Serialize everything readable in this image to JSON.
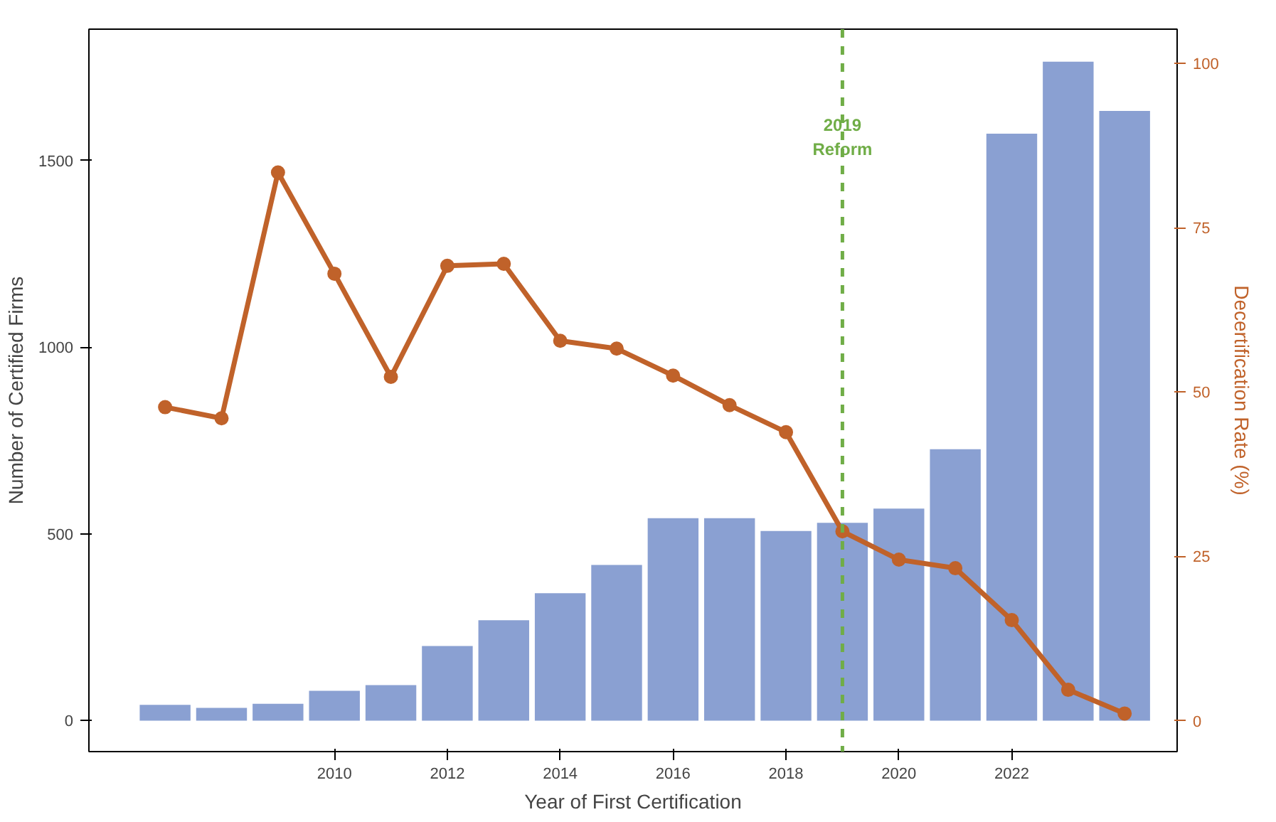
{
  "chart_data": {
    "type": "bar",
    "xlabel": "Year of First Certification",
    "ylabel": "Number of Certified Firms",
    "y2label": "Decertification Rate (%)",
    "x": [
      2007,
      2008,
      2009,
      2010,
      2011,
      2012,
      2013,
      2014,
      2015,
      2016,
      2017,
      2018,
      2019,
      2020,
      2021,
      2022,
      2023,
      2024
    ],
    "series": [
      {
        "color": "#8aa0d2",
        "values": [
          42,
          34,
          45,
          80,
          95,
          200,
          269,
          341,
          417,
          542,
          542,
          508,
          530,
          568,
          727,
          1572,
          1765,
          1633
        ]
      },
      {
        "type": "line",
        "axis": "y2",
        "color": "#c0622a",
        "marker": "circle",
        "line_style": "solid",
        "values": [
          47.7,
          46.0,
          83.4,
          68.0,
          52.3,
          69.2,
          69.5,
          57.8,
          56.6,
          52.5,
          48.0,
          43.9,
          28.8,
          24.5,
          23.2,
          15.3,
          4.7,
          1.1
        ]
      }
    ],
    "xlim": [
      2005.65,
      2024.93
    ],
    "xticks": [
      2010,
      2012,
      2014,
      2016,
      2018,
      2020,
      2022
    ],
    "ylim": [
      -83,
      1852
    ],
    "yticks": [
      0,
      500,
      1000,
      1500
    ],
    "y2lim": [
      -4.7,
      105.2
    ],
    "y2ticks": [
      0,
      25,
      50,
      75,
      100
    ],
    "ref_lines": [
      {
        "axis": "x",
        "value": 2019,
        "label": "2019\nReform",
        "color": "#70ad47",
        "line_style": "dashed"
      }
    ],
    "grid": false
  }
}
